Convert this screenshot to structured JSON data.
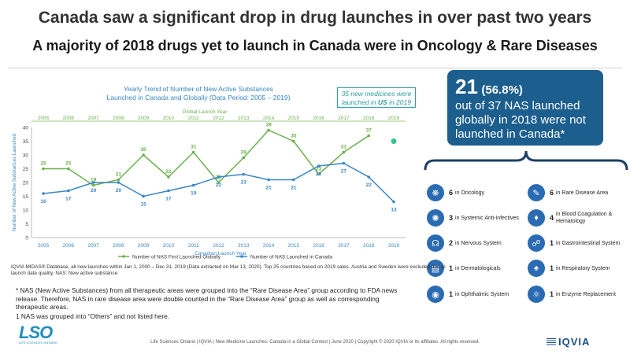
{
  "header": {
    "title": "Canada saw a significant drop in drug launches in over past two years",
    "subtitle": "A majority of 2018 drugs yet to launch in Canada were in Oncology & Rare Diseases"
  },
  "chart_data": {
    "type": "line",
    "title_lines": [
      "Yearly Trend of Number of New Active Substances",
      "Launched in Canada and Globally (Data Period: 2005 – 2019)"
    ],
    "top_axis_label": "Global Launch Year",
    "xlabel": "Canadian Launch Year",
    "ylabel": "Number of New Active Substances Launched",
    "ylim": [
      0,
      40
    ],
    "yticks": [
      0,
      5,
      10,
      15,
      20,
      25,
      30,
      35,
      40
    ],
    "x": [
      "2005",
      "2006",
      "2007",
      "2008",
      "2009",
      "2010",
      "2011",
      "2012",
      "2013",
      "2014",
      "2015",
      "2016",
      "2017",
      "2018",
      "2019"
    ],
    "series": [
      {
        "name": "Number of NAS First Launched Globally",
        "color": "#6ab04c",
        "values": [
          25,
          25,
          19,
          21,
          30,
          22,
          31,
          20,
          29,
          39,
          35,
          23,
          31,
          37,
          null
        ],
        "extra_point": {
          "x": "2019",
          "value": 35
        }
      },
      {
        "name": "Number of NAS Launched in Canada",
        "color": "#3a86c4",
        "values": [
          16,
          17,
          20,
          20,
          15,
          17,
          19,
          22,
          23,
          21,
          21,
          26,
          27,
          22,
          13
        ]
      }
    ],
    "label_colors": {
      "top_axis": "#6ab04c",
      "title": "#3a86c4",
      "bottom_axis": "#3a86c4"
    },
    "legend_position": "bottom",
    "grid": false
  },
  "callout": {
    "line1": "35 new medicines were",
    "line2_pre": "launched in ",
    "line2_bold": "US",
    "line2_post": " in 2019"
  },
  "info_box": {
    "big": "21",
    "pct": "(56.8%)",
    "lines": [
      "out of 37 NAS launched",
      "globally in 2018 were not",
      "launched in Canada*"
    ]
  },
  "categories": [
    {
      "count": "6",
      "label": "in Oncology",
      "icon": "oncology-icon"
    },
    {
      "count": "6",
      "label": "in Rare Disease Area",
      "icon": "rare-disease-icon"
    },
    {
      "count": "3",
      "label": "in Systemic Anti-infectives",
      "icon": "anti-infectives-icon"
    },
    {
      "count": "4",
      "label": "in Blood Coagulation &",
      "label2": "Hematology",
      "icon": "blood-icon"
    },
    {
      "count": "2",
      "label": "in Nervous System",
      "icon": "brain-icon"
    },
    {
      "count": "1",
      "label": "in Gastrointestinal System",
      "icon": "stomach-icon"
    },
    {
      "count": "1",
      "label": "in Dermatologicals",
      "icon": "skin-icon"
    },
    {
      "count": "1",
      "label": "in Respiratory System",
      "icon": "lungs-icon"
    },
    {
      "count": "1",
      "label": "in Ophthalmic System",
      "icon": "eye-icon"
    },
    {
      "count": "1",
      "label": "in Enzyme Replacement",
      "icon": "enzyme-icon"
    }
  ],
  "notes": {
    "source": "IQVIA MIDAS® Database, all new launches within Jan 1, 2000 – Dec 31, 2019 (Data extracted on Mar 13, 2020). Top 25 countries based on 2019 sales. Austria and Sweden were excluded due to launch date quality. NAS: New active substance",
    "footnote1": "* NAS (New Active Substances) from all therapeutic areas were grouped into the “Rare Disease Area” group according to FDA news release. Therefore, NAS in rare disease area were double counted in the “Rare Disease Area” group as well as corresponding therapeutic areas.",
    "footnote2": "1 NAS was grouped into “Others” and not listed here.",
    "footer": "Life Sciences Ontario | IQVIA | New Medicine Launches: Canada in a Global Context | June 2020 | Copyright © 2020 IQVIA or its affiliates. All rights reserved."
  },
  "logos": {
    "lso": "LSO",
    "lso_sub": "LIFE SCIENCES ONTARIO",
    "iqvia": "IQVIA"
  },
  "colors": {
    "accent": "#1c5e8e",
    "icon_bg": "#2a6bb3",
    "callout": "#2aa5a5"
  }
}
